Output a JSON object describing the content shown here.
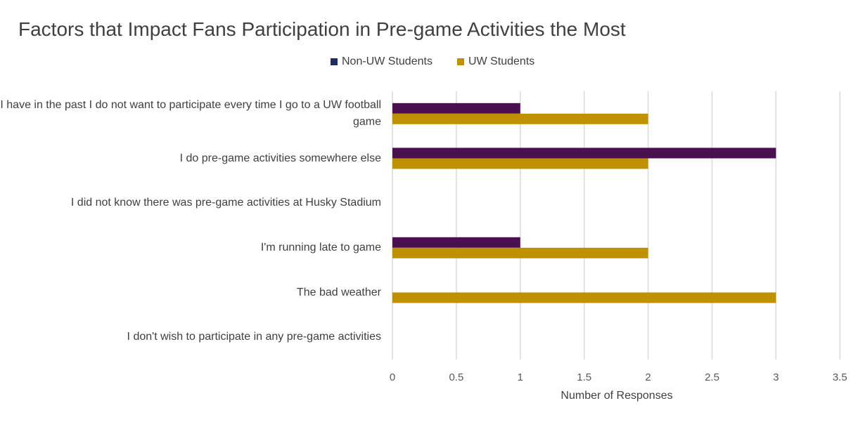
{
  "title": "Factors that Impact Fans Participation in Pre-game Activities the Most",
  "legend": [
    {
      "name": "Non-UW Students",
      "color": "#1F2C5C"
    },
    {
      "name": "UW Students",
      "color": "#BF9000"
    }
  ],
  "chart_data": {
    "type": "bar",
    "orientation": "horizontal",
    "title": "Factors that Impact Fans Participation in Pre-game Activities the Most",
    "xlabel": "Number of Responses",
    "ylabel": "",
    "xlim": [
      0,
      3.5
    ],
    "x_ticks": [
      "0",
      "0.5",
      "1",
      "1.5",
      "2",
      "2.5",
      "3",
      "3.5"
    ],
    "grid": true,
    "legend_position": "top",
    "categories": [
      "I have in the past I do not want to participate every time I go to a UW football game",
      "I do pre-game activities somewhere else",
      "I did not know there was pre-game activities at Husky Stadium",
      "I'm running late to game",
      "The bad weather",
      "I don't wish to participate in any pre-game activities"
    ],
    "series": [
      {
        "name": "Non-UW Students",
        "color": "#4B1050",
        "values": [
          1,
          3,
          0,
          1,
          0,
          0
        ]
      },
      {
        "name": "UW Students",
        "color": "#BF9000",
        "values": [
          2,
          2,
          0,
          2,
          3,
          0
        ]
      }
    ]
  }
}
